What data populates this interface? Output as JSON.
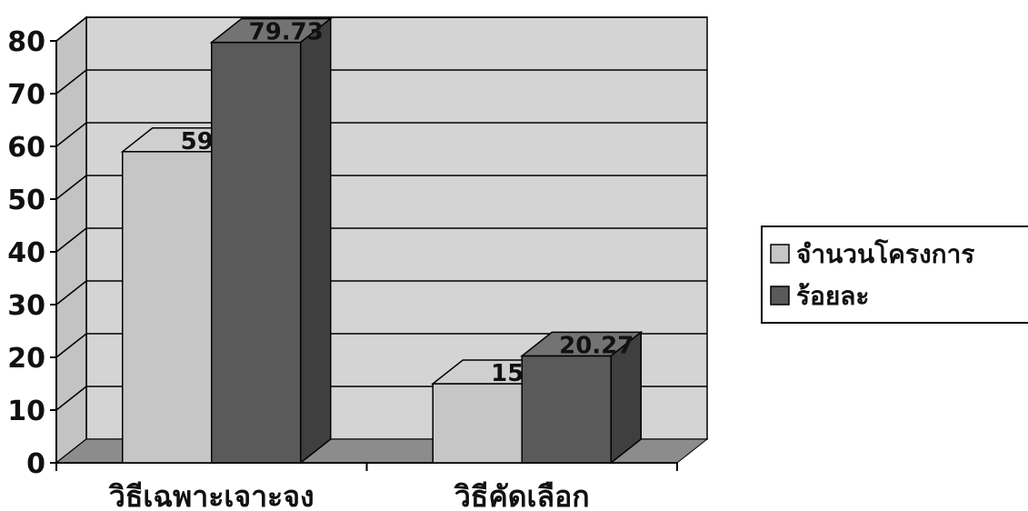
{
  "chart_data": {
    "type": "bar",
    "categories": [
      "วิธีเฉพาะเจาะจง",
      "วิธีคัดเลือก"
    ],
    "series": [
      {
        "name": "จำนวนโครงการ",
        "values": [
          59,
          15
        ],
        "labels": [
          "59",
          "15"
        ],
        "color": "#c6c6c6"
      },
      {
        "name": "ร้อยละ",
        "values": [
          79.73,
          20.27
        ],
        "labels": [
          "79.73",
          "20.27"
        ],
        "color": "#5a5a5a"
      }
    ],
    "ylim": [
      0,
      80
    ],
    "yticks": [
      0,
      10,
      20,
      30,
      40,
      50,
      60,
      70,
      80
    ],
    "grid": true,
    "style": "3d-clustered-column",
    "legend_position": "right",
    "colors": {
      "wall": "#d4d4d4",
      "floor": "#8c8c8c",
      "grid": "#000000"
    }
  }
}
